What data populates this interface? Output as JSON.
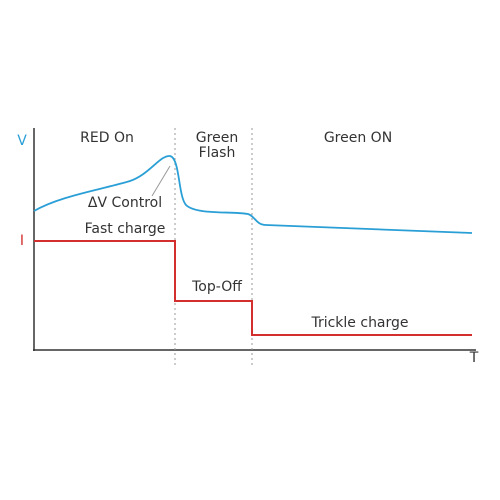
{
  "axes": {
    "v": "V",
    "i": "I",
    "t": "T"
  },
  "phases": [
    {
      "lines": [
        "RED On"
      ]
    },
    {
      "lines": [
        "Green",
        "Flash"
      ]
    },
    {
      "lines": [
        "Green ON"
      ]
    }
  ],
  "annotations": {
    "delta_v": "ΔV Control",
    "fast": "Fast charge",
    "topoff": "Top-Off",
    "trickle": "Trickle charge"
  }
}
